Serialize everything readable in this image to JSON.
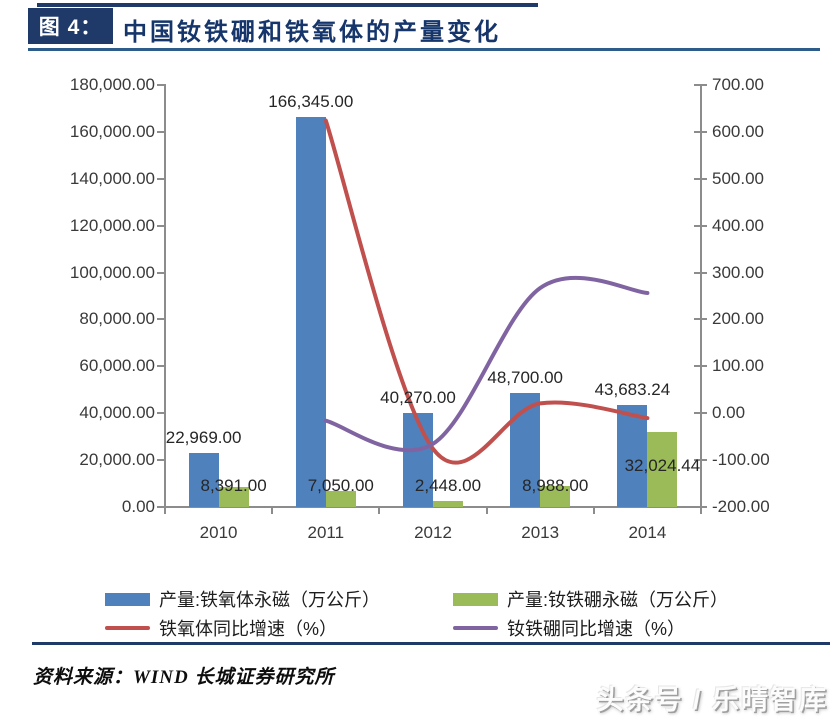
{
  "figure": {
    "tag": "图 4：",
    "title": "中国钕铁硼和铁氧体的产量变化"
  },
  "colors": {
    "navy": "#1F3A68",
    "navy_text": "#16366B",
    "steel": "#2E5C8A",
    "axis_gray": "#8c8c8c"
  },
  "chart_data": {
    "type": "bar",
    "subtype": "combo-bar-line-dual-axis",
    "title": "中国钕铁硼和铁氧体的产量变化",
    "xlabel": "",
    "ylabel": "",
    "grid": false,
    "legend_position": "bottom",
    "categories": [
      "2010",
      "2011",
      "2012",
      "2013",
      "2014"
    ],
    "left_axis": {
      "min": 0,
      "max": 180000,
      "step": 20000,
      "tick_labels": [
        "180,000.00",
        "160,000.00",
        "140,000.00",
        "120,000.00",
        "100,000.00",
        "80,000.00",
        "60,000.00",
        "40,000.00",
        "20,000.00",
        "0.00"
      ]
    },
    "right_axis": {
      "min": -200,
      "max": 700,
      "step": 100,
      "tick_labels": [
        "700.00",
        "600.00",
        "500.00",
        "400.00",
        "300.00",
        "200.00",
        "100.00",
        "0.00",
        "-100.00",
        "-200.00"
      ]
    },
    "series": [
      {
        "name": "产量:铁氧体永磁（万公斤）",
        "kind": "bar",
        "axis": "left",
        "color": "#4F81BD",
        "values": [
          22969,
          166345,
          40270,
          48700,
          43683.24
        ],
        "labels": [
          "22,969.00",
          "166,345.00",
          "40,270.00",
          "48,700.00",
          "43,683.24"
        ]
      },
      {
        "name": "产量:钕铁硼永磁（万公斤）",
        "kind": "bar",
        "axis": "left",
        "color": "#9BBB59",
        "values": [
          8391,
          7050,
          2448,
          8988,
          32024.44
        ],
        "labels": [
          "8,391.00",
          "7,050.00",
          "2,448.00",
          "8,988.00",
          "32,024.44"
        ]
      },
      {
        "name": "铁氧体同比增速（%）",
        "kind": "line",
        "axis": "right",
        "color": "#C0504D",
        "x": [
          "2011",
          "2012",
          "2013",
          "2014"
        ],
        "values": [
          624.22,
          -75.79,
          20.93,
          -10.3
        ]
      },
      {
        "name": "钕铁硼同比增速（%）",
        "kind": "line",
        "axis": "right",
        "color": "#8064A2",
        "x": [
          "2011",
          "2012",
          "2013",
          "2014"
        ],
        "values": [
          -15.98,
          -65.28,
          267.16,
          256.3
        ]
      }
    ]
  },
  "source": {
    "text": "资料来源：WIND 长城证券研究所"
  },
  "watermark": {
    "text": "头条号 / 乐晴智库"
  }
}
